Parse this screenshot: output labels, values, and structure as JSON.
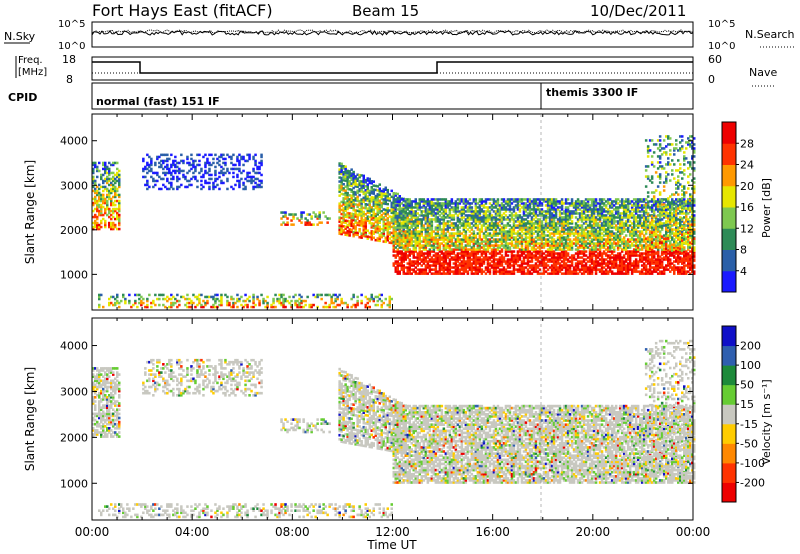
{
  "header": {
    "station": "Fort Hays East (fitACF)",
    "beam": "Beam 15",
    "date": "10/Dec/2011"
  },
  "noise_panel": {
    "left_label": "N.Sky",
    "right_label": "N.Search",
    "left_ticks": [
      "10^5",
      "10^0"
    ],
    "right_ticks": [
      "10^5",
      "10^0"
    ]
  },
  "freq_panel": {
    "left_label_line1": "Freq.",
    "left_label_line2": "[MHz]",
    "left_ticks": [
      "18",
      "8"
    ],
    "right_label": "Nave",
    "right_ticks": [
      "60",
      "0"
    ]
  },
  "cpid_panel": {
    "label": "CPID",
    "programs": [
      {
        "name": "normal (fast) 151 IF",
        "start_hour": 0
      },
      {
        "name": "themis 3300 IF",
        "start_hour": 18
      }
    ]
  },
  "chart_data": [
    {
      "type": "heatmap",
      "name": "power",
      "ylabel": "Slant Range [km]",
      "yticks": [
        1000,
        2000,
        3000,
        4000
      ],
      "ylim": [
        200,
        4600
      ],
      "xlim_hours": [
        0,
        24
      ],
      "colorbar": {
        "label": "Power [dB]",
        "ticks": [
          "4",
          "8",
          "12",
          "16",
          "20",
          "24",
          "28"
        ],
        "colors": [
          "#1a1aff",
          "#2a5fa8",
          "#2e8b57",
          "#7ec850",
          "#e6e600",
          "#ff9900",
          "#ff3300",
          "#ee0000"
        ]
      }
    },
    {
      "type": "heatmap",
      "name": "velocity",
      "ylabel": "Slant Range [km]",
      "yticks": [
        1000,
        2000,
        3000,
        4000
      ],
      "ylim": [
        200,
        4600
      ],
      "xlim_hours": [
        0,
        24
      ],
      "colorbar": {
        "label": "Velocity [m s⁻¹]",
        "ticks": [
          "200",
          "100",
          "50",
          "15",
          "-15",
          "-50",
          "-100",
          "-200"
        ],
        "colors": [
          "#1010c8",
          "#2f5faf",
          "#1d8a3a",
          "#66cc33",
          "#c8c8c0",
          "#ffcc00",
          "#ff8800",
          "#ff3300",
          "#ee0000"
        ]
      }
    }
  ],
  "xaxis": {
    "label": "Time UT",
    "ticks": [
      "00:00",
      "04:00",
      "08:00",
      "12:00",
      "16:00",
      "20:00",
      "00:00"
    ]
  },
  "colors": {
    "background": "#ffffff",
    "axis": "#000000",
    "ground_gray": "#c8c8c0"
  }
}
